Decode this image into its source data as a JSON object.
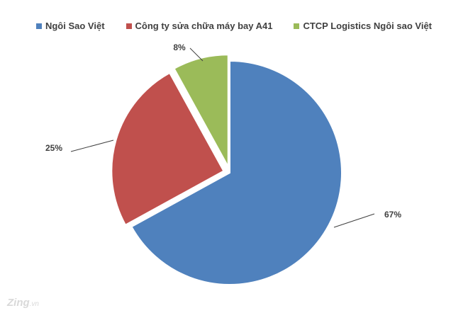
{
  "chart_data": {
    "type": "pie",
    "series": [
      {
        "name": "Ngôi Sao Việt",
        "value": 67,
        "label": "67%",
        "color": "#4f81bd"
      },
      {
        "name": "Công ty sửa chữa máy bay A41",
        "value": 25,
        "label": "25%",
        "color": "#c0504d"
      },
      {
        "name": "CTCP Logistics Ngôi sao Việt",
        "value": 8,
        "label": "8%",
        "color": "#9bbb59"
      }
    ],
    "legend_position": "top"
  },
  "watermark": {
    "brand": "Zing",
    "suffix": ".vn"
  }
}
